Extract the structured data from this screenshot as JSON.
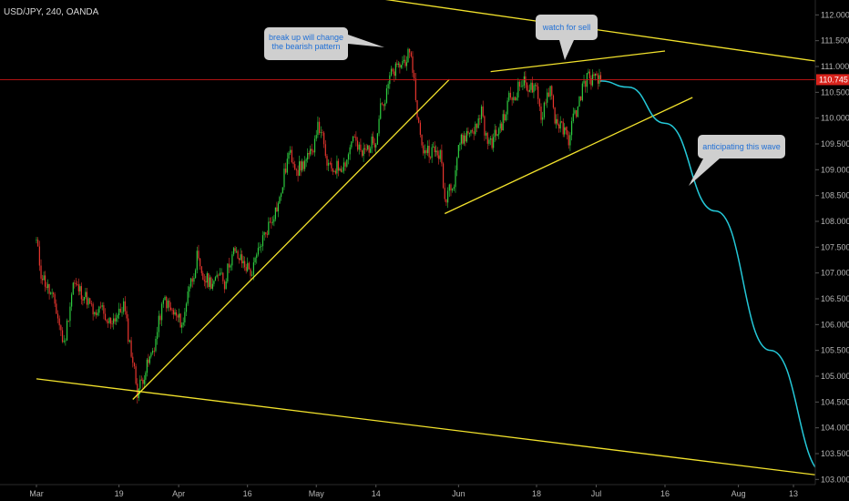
{
  "chart_data": {
    "type": "candlestick",
    "title": "USD/JPY, 240, OANDA",
    "x_tick_labels": [
      "Mar",
      "19",
      "Apr",
      "16",
      "May",
      "14",
      "Jun",
      "18",
      "Jul",
      "16",
      "Aug",
      "13"
    ],
    "y_tick_labels": [
      "103.000",
      "103.500",
      "104.000",
      "104.500",
      "105.000",
      "105.500",
      "106.000",
      "106.500",
      "107.000",
      "107.500",
      "108.000",
      "108.500",
      "109.000",
      "109.500",
      "110.000",
      "110.500",
      "111.000",
      "111.500",
      "112.000"
    ],
    "y_range": [
      102.9,
      112.2
    ],
    "current_price": {
      "label": "110.745",
      "value": 110.745
    },
    "annotations": [
      {
        "lines": [
          "break up will change",
          "the bearish pattern"
        ]
      },
      {
        "lines": [
          "watch for sell"
        ]
      },
      {
        "lines": [
          "anticipating this wave"
        ]
      }
    ],
    "price_path": [
      [
        "Mar 1",
        107.6
      ],
      [
        "Mar 2",
        107.0
      ],
      [
        "Mar 5",
        106.4
      ],
      [
        "Mar 6",
        106.0
      ],
      [
        "Mar 7",
        105.6
      ],
      [
        "Mar 8",
        106.2
      ],
      [
        "Mar 9",
        106.8
      ],
      [
        "Mar 12",
        106.5
      ],
      [
        "Mar 13",
        106.3
      ],
      [
        "Mar 14",
        106.1
      ],
      [
        "Mar 15",
        106.4
      ],
      [
        "Mar 16",
        106.0
      ],
      [
        "Mar 19",
        106.2
      ],
      [
        "Mar 20",
        106.4
      ],
      [
        "Mar 21",
        105.8
      ],
      [
        "Mar 22",
        105.3
      ],
      [
        "Mar 23",
        104.7
      ],
      [
        "Mar 26",
        105.4
      ],
      [
        "Mar 27",
        105.7
      ],
      [
        "Mar 28",
        106.2
      ],
      [
        "Mar 29",
        106.5
      ],
      [
        "Mar 30",
        106.3
      ],
      [
        "Apr 2",
        106.0
      ],
      [
        "Apr 3",
        106.7
      ],
      [
        "Apr 4",
        106.9
      ],
      [
        "Apr 5",
        107.3
      ],
      [
        "Apr 6",
        106.9
      ],
      [
        "Apr 9",
        106.8
      ],
      [
        "Apr 10",
        107.1
      ],
      [
        "Apr 11",
        106.8
      ],
      [
        "Apr 12",
        107.2
      ],
      [
        "Apr 13",
        107.4
      ],
      [
        "Apr 16",
        107.1
      ],
      [
        "Apr 17",
        107.0
      ],
      [
        "Apr 18",
        107.3
      ],
      [
        "Apr 19",
        107.6
      ],
      [
        "Apr 20",
        107.8
      ],
      [
        "Apr 23",
        108.4
      ],
      [
        "Apr 24",
        108.9
      ],
      [
        "Apr 25",
        109.3
      ],
      [
        "Apr 26",
        109.2
      ],
      [
        "Apr 27",
        109.0
      ],
      [
        "Apr 30",
        109.3
      ],
      [
        "May 1",
        109.8
      ],
      [
        "May 2",
        109.8
      ],
      [
        "May 3",
        109.2
      ],
      [
        "May 4",
        109.0
      ],
      [
        "May 7",
        109.1
      ],
      [
        "May 8",
        109.3
      ],
      [
        "May 9",
        109.7
      ],
      [
        "May 10",
        109.4
      ],
      [
        "May 11",
        109.3
      ],
      [
        "May 14",
        109.6
      ],
      [
        "May 15",
        110.3
      ],
      [
        "May 16",
        110.3
      ],
      [
        "May 17",
        110.8
      ],
      [
        "May 18",
        110.9
      ],
      [
        "May 21",
        111.2
      ],
      [
        "May 22",
        111.0
      ],
      [
        "May 23",
        110.1
      ],
      [
        "May 24",
        109.4
      ],
      [
        "May 25",
        109.4
      ],
      [
        "May 28",
        109.3
      ],
      [
        "May 29",
        108.4
      ],
      [
        "May 30",
        108.7
      ],
      [
        "May 31",
        108.8
      ],
      [
        "Jun 1",
        109.5
      ],
      [
        "Jun 4",
        109.8
      ],
      [
        "Jun 5",
        109.8
      ],
      [
        "Jun 6",
        110.2
      ],
      [
        "Jun 7",
        109.6
      ],
      [
        "Jun 8",
        109.5
      ],
      [
        "Jun 11",
        110.0
      ],
      [
        "Jun 12",
        110.4
      ],
      [
        "Jun 13",
        110.4
      ],
      [
        "Jun 14",
        110.6
      ],
      [
        "Jun 15",
        110.7
      ],
      [
        "Jun 18",
        110.5
      ],
      [
        "Jun 19",
        110.0
      ],
      [
        "Jun 20",
        110.4
      ],
      [
        "Jun 21",
        110.6
      ],
      [
        "Jun 22",
        110.0
      ],
      [
        "Jun 25",
        109.6
      ],
      [
        "Jun 26",
        110.0
      ],
      [
        "Jun 27",
        110.2
      ],
      [
        "Jun 28",
        110.6
      ],
      [
        "Jun 29",
        110.8
      ],
      [
        "Jul 2",
        110.7
      ]
    ],
    "trend_lines": [
      {
        "from": [
          "Mar 1",
          104.95
        ],
        "to": [
          "Aug 26",
          103.0
        ]
      },
      {
        "from": [
          "Mar 22",
          104.55
        ],
        "to": [
          "May 30",
          110.75
        ]
      },
      {
        "from": [
          "May 29",
          108.15
        ],
        "to": [
          "Jul 22",
          110.4
        ]
      },
      {
        "from": [
          "Jun 8",
          110.9
        ],
        "to": [
          "Jul 16",
          111.3
        ]
      },
      {
        "from": [
          "May 16",
          112.3
        ],
        "to": [
          "Aug 30",
          110.95
        ]
      }
    ],
    "projection": [
      [
        "Jul 2",
        110.72
      ],
      [
        "Jul 8",
        110.6
      ],
      [
        "Jul 16",
        109.9
      ],
      [
        "Jul 27",
        108.2
      ],
      [
        "Aug 8",
        105.5
      ],
      [
        "Aug 20",
        103.1
      ]
    ],
    "colors": {
      "background": "#000000",
      "up_candle": "#2ecc40",
      "down_candle": "#e8352e",
      "trend_line": "#f2e22c",
      "projection": "#24c8d8",
      "price_line": "#c81414",
      "price_label_bg": "#d8231c",
      "callout_bg": "#cfcfcf",
      "callout_text": "#1f6fd6",
      "axis_text": "#b4b4b4"
    },
    "grid": false,
    "legend": "none"
  }
}
